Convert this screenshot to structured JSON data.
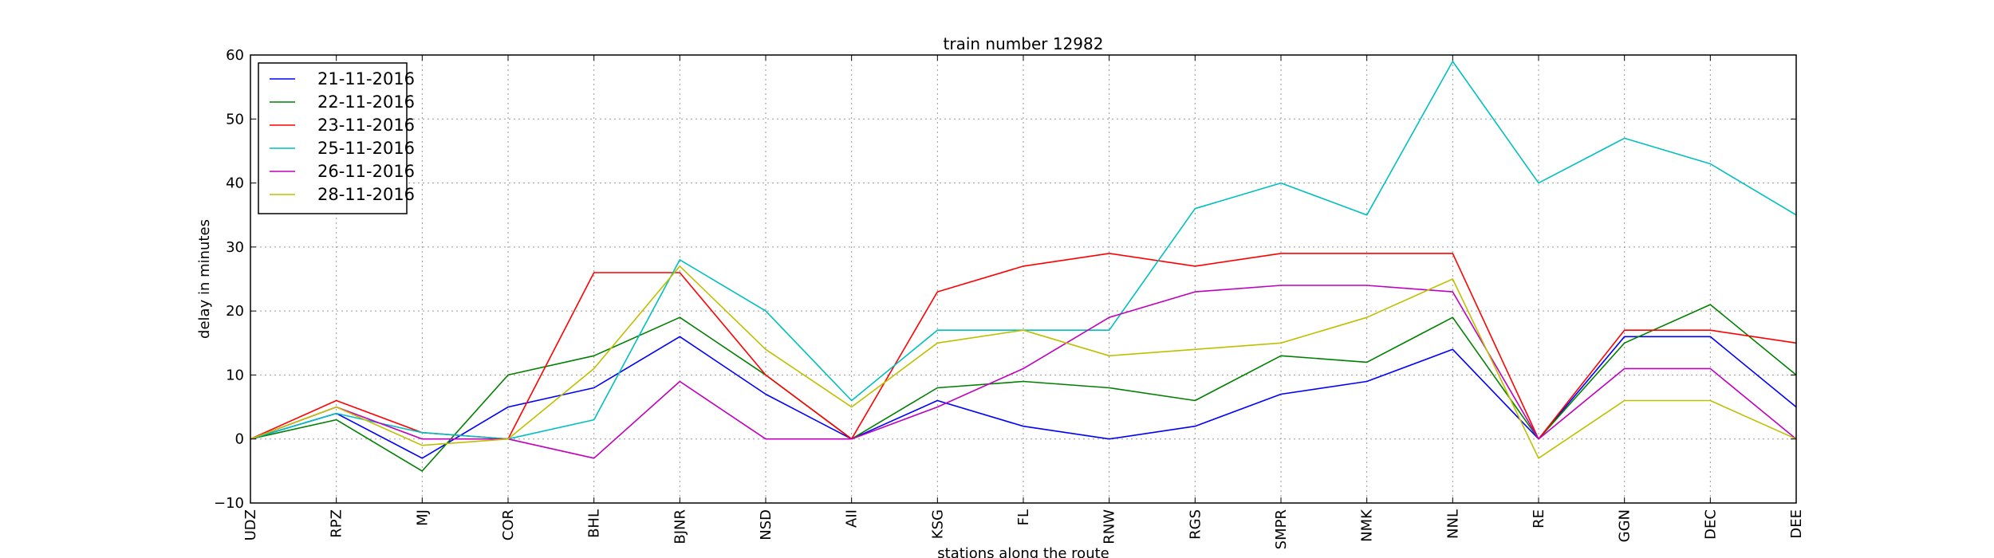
{
  "chart_data": {
    "type": "line",
    "title": "train number 12982",
    "xlabel": "stations along the route",
    "ylabel": "delay in minutes",
    "ylim": [
      -10,
      60
    ],
    "yticks": [
      -10,
      0,
      10,
      20,
      30,
      40,
      50,
      60
    ],
    "categories": [
      "UDZ",
      "RPZ",
      "MJ",
      "COR",
      "BHL",
      "BJNR",
      "NSD",
      "AII",
      "KSG",
      "FL",
      "RNW",
      "RGS",
      "SMPR",
      "NMK",
      "NNL",
      "RE",
      "GGN",
      "DEC",
      "DEE"
    ],
    "grid": true,
    "legend_position": "top-left",
    "series": [
      {
        "name": "21-11-2016",
        "color": "#0000ff",
        "values": [
          0,
          4,
          -3,
          5,
          8,
          16,
          7,
          0,
          6,
          2,
          0,
          2,
          7,
          9,
          14,
          0,
          16,
          16,
          5
        ]
      },
      {
        "name": "22-11-2016",
        "color": "#008000",
        "values": [
          0,
          3,
          -5,
          10,
          13,
          19,
          10,
          0,
          8,
          9,
          8,
          6,
          13,
          12,
          19,
          0,
          15,
          21,
          10
        ]
      },
      {
        "name": "23-11-2016",
        "color": "#ff0000",
        "values": [
          0,
          6,
          1,
          0,
          26,
          26,
          10,
          0,
          23,
          27,
          29,
          27,
          29,
          29,
          29,
          0,
          17,
          17,
          15
        ]
      },
      {
        "name": "25-11-2016",
        "color": "#00bfbf",
        "values": [
          0,
          4,
          1,
          0,
          3,
          28,
          20,
          6,
          17,
          17,
          17,
          36,
          40,
          35,
          59,
          40,
          47,
          43,
          35
        ]
      },
      {
        "name": "26-11-2016",
        "color": "#bf00bf",
        "values": [
          0,
          5,
          0,
          0,
          -3,
          9,
          0,
          0,
          5,
          11,
          19,
          23,
          24,
          24,
          23,
          0,
          11,
          11,
          0
        ]
      },
      {
        "name": "28-11-2016",
        "color": "#bfbf00",
        "values": [
          0,
          5,
          -1,
          0,
          11,
          27,
          14,
          5,
          15,
          17,
          13,
          14,
          15,
          19,
          25,
          -3,
          6,
          6,
          0
        ]
      }
    ]
  }
}
